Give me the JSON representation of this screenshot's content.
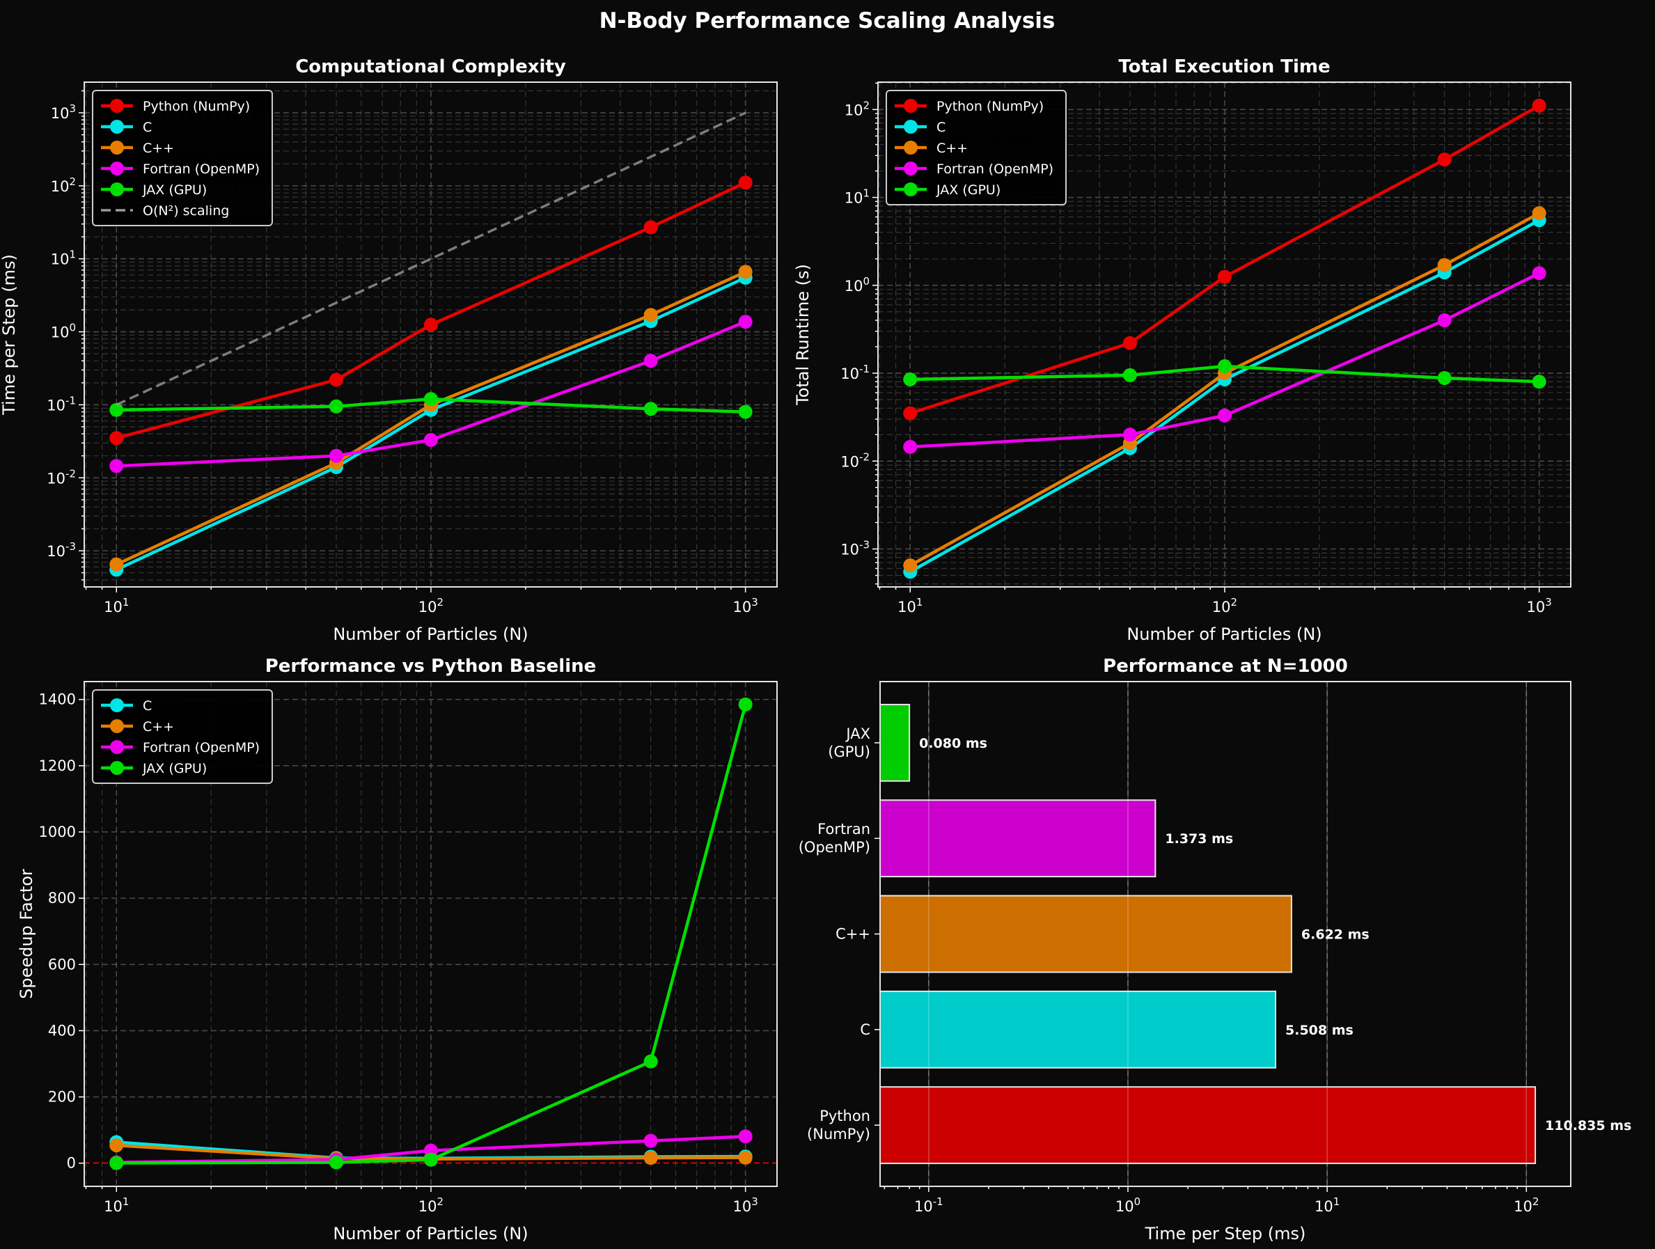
{
  "title": "N-Body Performance Scaling Analysis",
  "colors": {
    "Python (NumPy)": "#ee0000",
    "C": "#00e5e5",
    "C++": "#e67e00",
    "Fortran (OpenMP)": "#ee00ee",
    "JAX (GPU)": "#00e000",
    "O(N²) scaling": "#9a9a9a",
    "baseline": "#cc0000",
    "background": "#0a0a0a"
  },
  "chart_data": [
    {
      "type": "line",
      "title": "Computational Complexity",
      "xlabel": "Number of Particles (N)",
      "ylabel": "Time per Step (ms)",
      "xscale": "log",
      "yscale": "log",
      "xlim": [
        7.9,
        1260
      ],
      "ylim": [
        0.00032,
        2630
      ],
      "grid": true,
      "legend": "top-left",
      "x": [
        10,
        50,
        100,
        500,
        1000
      ],
      "series": [
        {
          "name": "Python (NumPy)",
          "values": [
            0.035,
            0.22,
            1.25,
            27,
            110.835
          ]
        },
        {
          "name": "C",
          "values": [
            0.00055,
            0.014,
            0.085,
            1.4,
            5.508
          ]
        },
        {
          "name": "C++",
          "values": [
            0.00065,
            0.016,
            0.1,
            1.7,
            6.622
          ]
        },
        {
          "name": "Fortran (OpenMP)",
          "values": [
            0.0145,
            0.02,
            0.033,
            0.4,
            1.373
          ]
        },
        {
          "name": "JAX (GPU)",
          "values": [
            0.085,
            0.095,
            0.12,
            0.088,
            0.08
          ]
        },
        {
          "name": "O(N²) scaling",
          "dashed": true,
          "values": [
            0.1,
            2.5,
            10,
            250,
            1000
          ]
        }
      ]
    },
    {
      "type": "line",
      "title": "Total Execution Time",
      "xlabel": "Number of Particles (N)",
      "ylabel": "Total Runtime (s)",
      "xscale": "log",
      "yscale": "log",
      "xlim": [
        7.9,
        1260
      ],
      "ylim": [
        0.00037,
        205
      ],
      "grid": true,
      "legend": "top-left",
      "x": [
        10,
        50,
        100,
        500,
        1000
      ],
      "series": [
        {
          "name": "Python (NumPy)",
          "values": [
            0.035,
            0.22,
            1.25,
            27,
            110.835
          ]
        },
        {
          "name": "C",
          "values": [
            0.00055,
            0.014,
            0.085,
            1.4,
            5.508
          ]
        },
        {
          "name": "C++",
          "values": [
            0.00065,
            0.016,
            0.1,
            1.7,
            6.622
          ]
        },
        {
          "name": "Fortran (OpenMP)",
          "values": [
            0.0145,
            0.02,
            0.033,
            0.4,
            1.373
          ]
        },
        {
          "name": "JAX (GPU)",
          "values": [
            0.085,
            0.095,
            0.12,
            0.088,
            0.08
          ]
        }
      ]
    },
    {
      "type": "line",
      "title": "Performance vs Python Baseline",
      "xlabel": "Number of Particles (N)",
      "ylabel": "Speedup Factor",
      "xscale": "log",
      "yscale": "linear",
      "xlim": [
        7.9,
        1260
      ],
      "ylim": [
        -70,
        1454
      ],
      "yticks": [
        0,
        200,
        400,
        600,
        800,
        1000,
        1200,
        1400
      ],
      "grid": true,
      "legend": "top-left",
      "baseline": 1,
      "x": [
        10,
        50,
        100,
        500,
        1000
      ],
      "series": [
        {
          "name": "C",
          "values": [
            63.6,
            15.7,
            14.7,
            19.3,
            20.1
          ]
        },
        {
          "name": "C++",
          "values": [
            53.8,
            13.8,
            12.5,
            15.9,
            16.7
          ]
        },
        {
          "name": "Fortran (OpenMP)",
          "values": [
            2.4,
            11,
            38,
            67.5,
            80.7
          ]
        },
        {
          "name": "JAX (GPU)",
          "values": [
            0.41,
            2.3,
            10.4,
            307,
            1385
          ]
        }
      ]
    },
    {
      "type": "bar",
      "orientation": "horizontal",
      "title": "Performance at N=1000",
      "xlabel": "Time per Step (ms)",
      "xscale": "log",
      "xlim": [
        0.057,
        167
      ],
      "grid": true,
      "categories": [
        "Python\n(NumPy)",
        "C",
        "C++",
        "Fortran\n(OpenMP)",
        "JAX\n(GPU)"
      ],
      "values": [
        110.835,
        5.508,
        6.622,
        1.373,
        0.08
      ],
      "data_labels": [
        "110.835 ms",
        "5.508 ms",
        "6.622 ms",
        "1.373 ms",
        "0.080 ms"
      ],
      "bar_colors": [
        "#cc0000",
        "#00cccc",
        "#cc6e00",
        "#cc00cc",
        "#00cc00"
      ]
    }
  ]
}
